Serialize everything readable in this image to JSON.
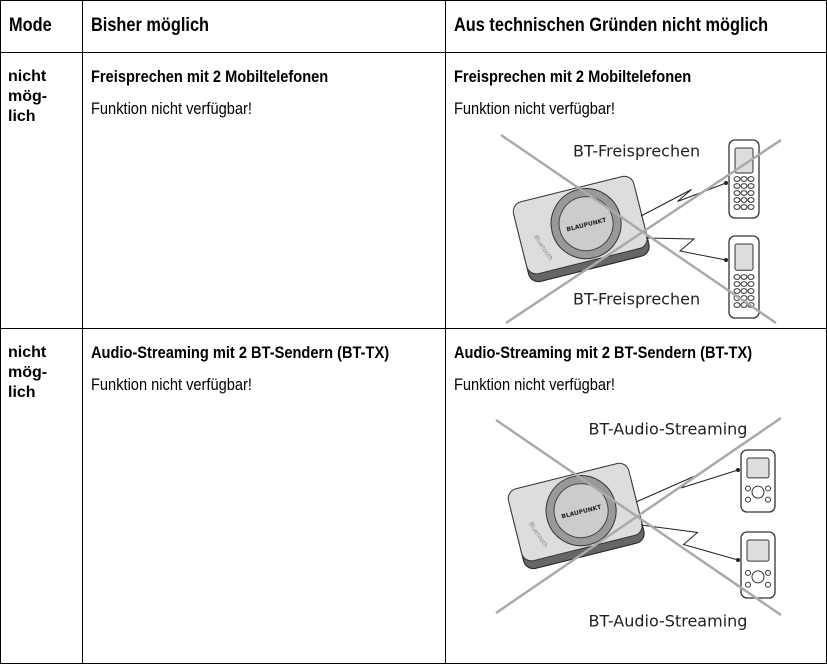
{
  "table": {
    "header": [
      "Mode",
      "Bisher möglich",
      "Aus technischen Gründen nicht möglich"
    ],
    "rows": [
      {
        "mode": [
          "nicht",
          "mög-",
          "lich"
        ],
        "before": {
          "title": "Freisprechen mit 2 Mobiltelefonen",
          "text": "Funktion nicht verfügbar!"
        },
        "now": {
          "title": "Freisprechen mit 2 Mobiltelefonen",
          "text": "Funktion nicht verfügbar!"
        },
        "diagram": {
          "labels": [
            "BT-Freisprechen",
            "BT-Freisprechen"
          ],
          "device_brand": "BLAUPUNKT",
          "device_side": "Bluetooth"
        }
      },
      {
        "mode": [
          "nicht",
          "mög-",
          "lich"
        ],
        "before": {
          "title": "Audio-Streaming mit 2 BT-Sendern (BT-TX)",
          "text": "Funktion nicht verfügbar!"
        },
        "now": {
          "title": "Audio-Streaming mit 2 BT-Sendern (BT-TX)",
          "text": "Funktion nicht verfügbar!"
        },
        "diagram": {
          "labels": [
            "BT-Audio-Streaming",
            "BT-Audio-Streaming"
          ],
          "device_brand": "BLAUPUNKT",
          "device_side": "Bluetooth"
        }
      }
    ]
  }
}
